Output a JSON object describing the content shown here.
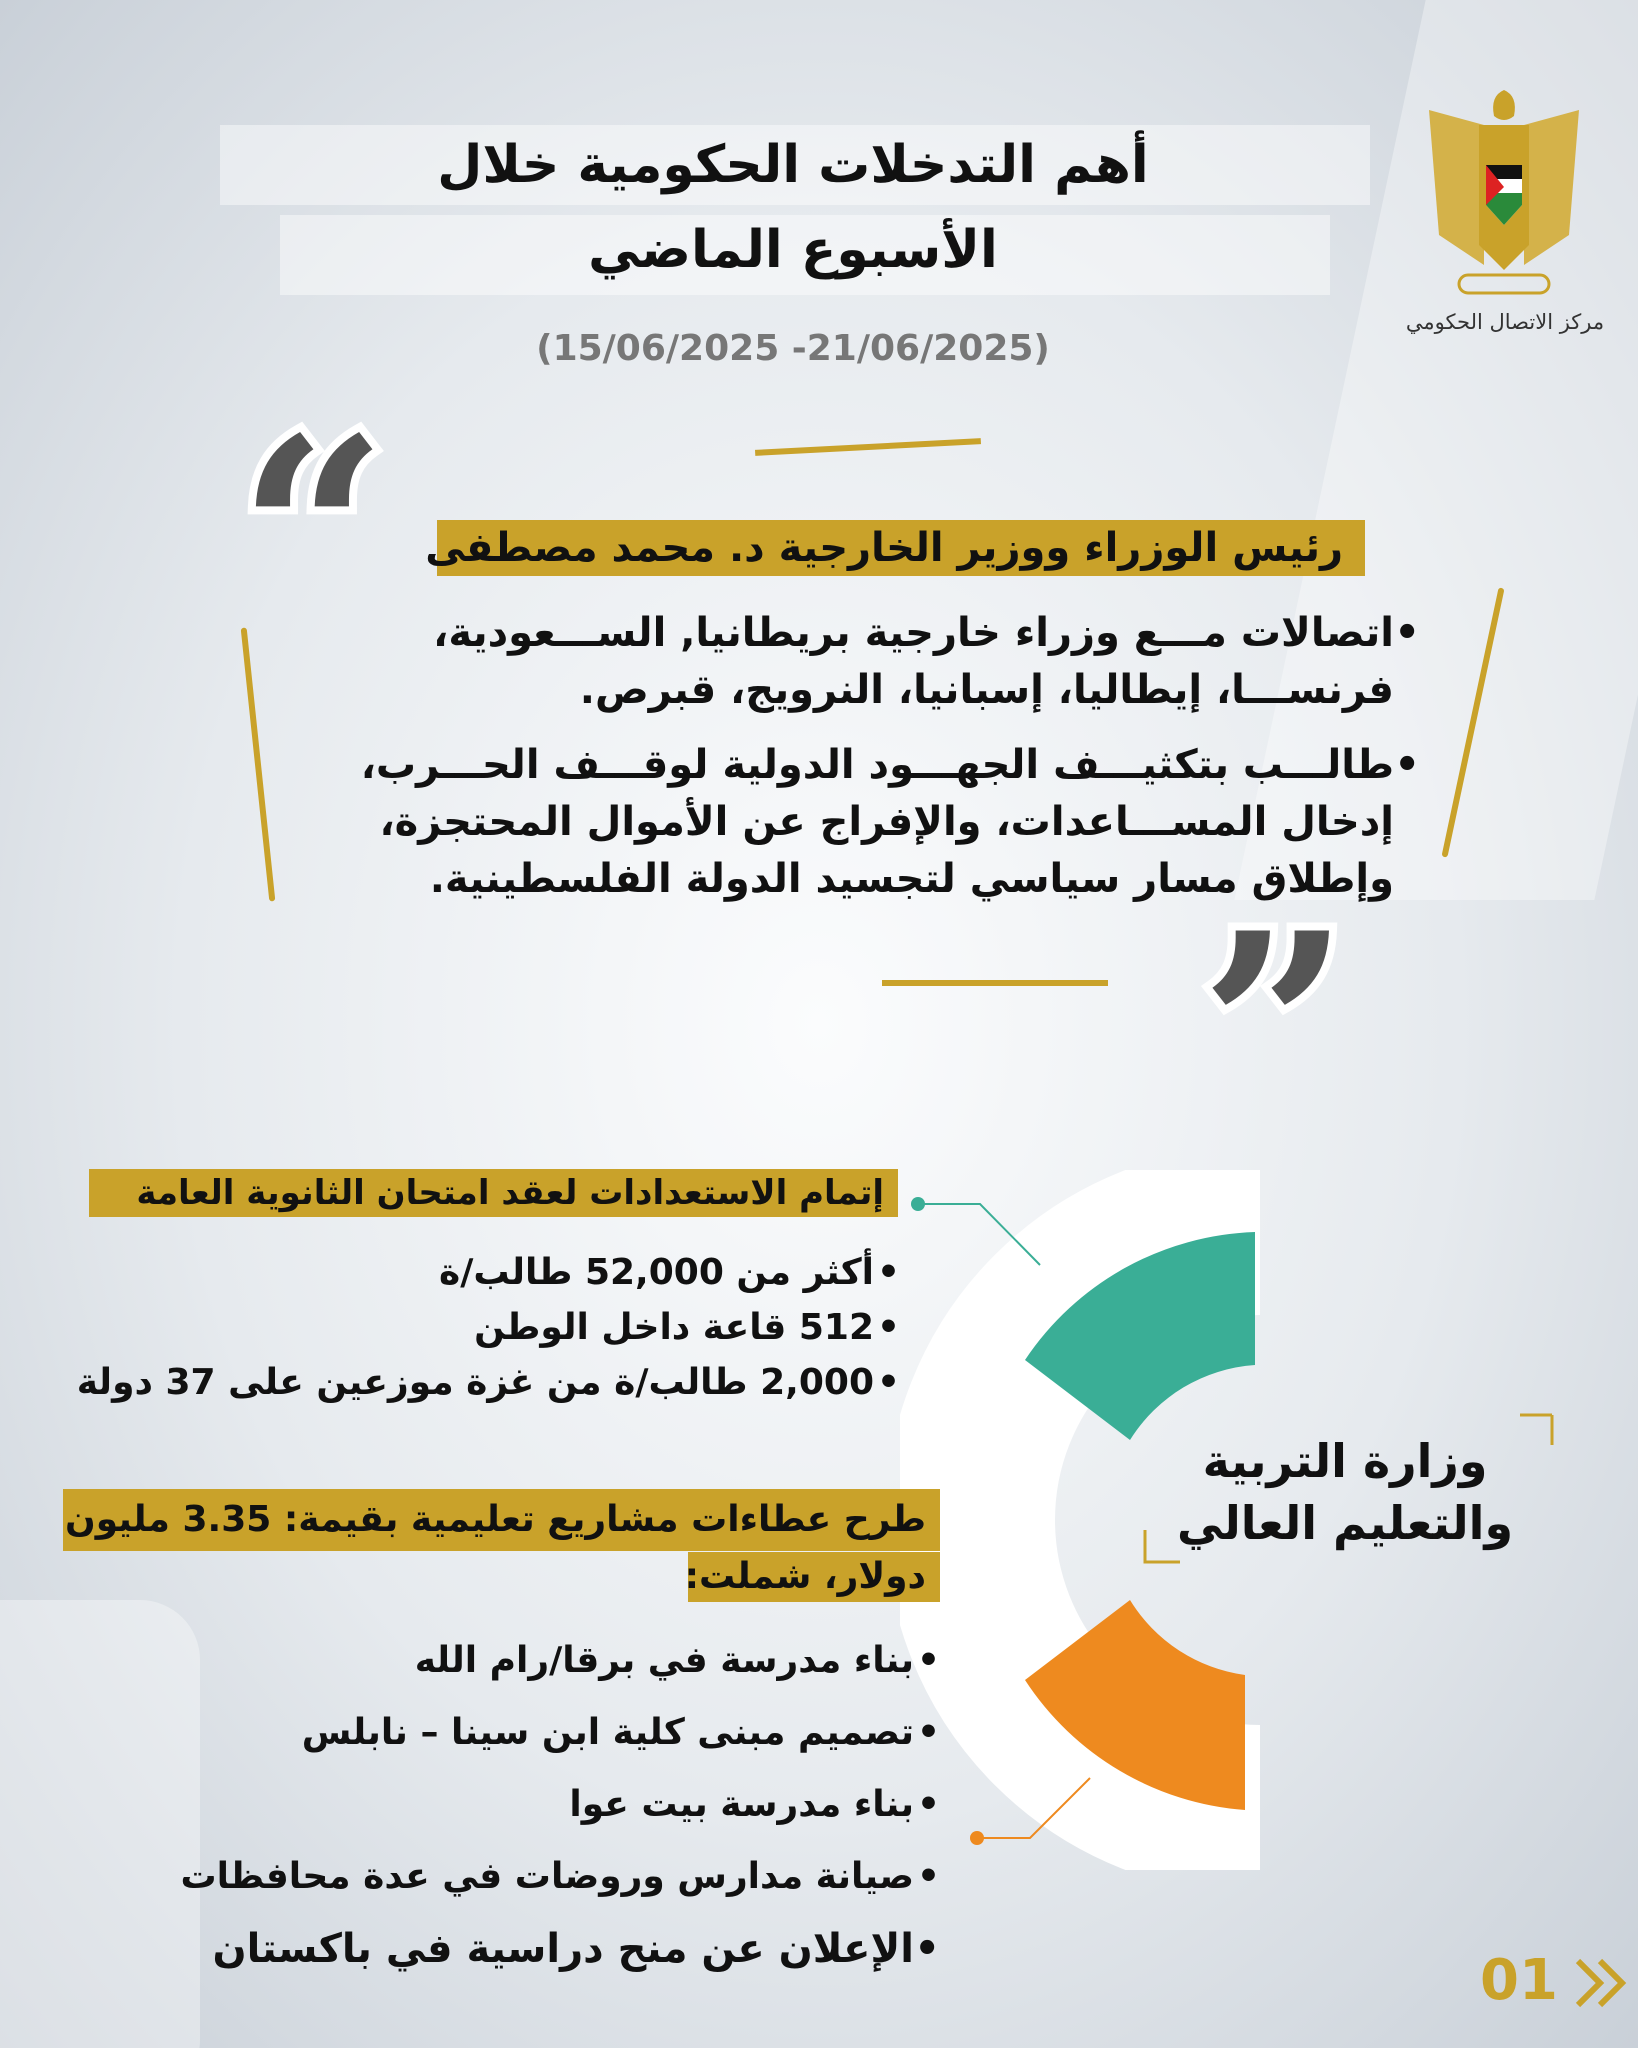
{
  "header": {
    "title_line1": "أهم التدخلات الحكومية  خلال",
    "title_line2": "الأسبوع الماضي",
    "date_range": "(15/06/2025 -21/06/2025)"
  },
  "logo": {
    "caption": "مركز الاتصال الحكومي",
    "emblem_text": "فلسطين"
  },
  "quote_section": {
    "speaker": "رئيس الوزراء ووزير الخارجية د. محمد مصطفى",
    "bullets": [
      "اتصالات مـــع وزراء خارجية بريطانيا, الســـعودية، فرنســـا، إيطاليا، إسبانيا، النرويج، قبرص.",
      "طالـــب بتكثيـــف الجهـــود الدولية لوقـــف الحـــرب، إدخال المســـاعدات، والإفراج عن الأموال المحتجزة، وإطلاق مسار سياسي لتجسيد الدولة الفلسطينية."
    ],
    "open_quote": "“",
    "close_quote": "”"
  },
  "ministry": {
    "name_line1": "وزارة التربية",
    "name_line2": "والتعليم العالي",
    "exam": {
      "heading": "إتمام الاستعدادات لعقد امتحان الثانوية العامة",
      "bullets": [
        "أكثر من 52,000 طالب/ة",
        "512 قاعة داخل الوطن",
        "2,000 طالب/ة من غزة موزعين على 37 دولة"
      ]
    },
    "projects": {
      "heading_line1": "طرح عطاءات مشاريع تعليمية بقيمة: 3.35 مليون",
      "heading_line2": "دولار، شملت:",
      "bullets": [
        "بناء مدرسة في برقا/رام الله",
        "تصميم مبنى كلية ابن سينا – نابلس",
        "بناء مدرسة بيت عوا",
        "صيانة مدارس وروضات في عدة محافظات",
        "الإعلان عن منح دراسية في باكستان"
      ]
    }
  },
  "colors": {
    "gold": "#c9a22a",
    "teal": "#3aae96",
    "orange": "#ee8a1f"
  },
  "footer": {
    "page_number": "01",
    "next_icon": "double-chevron-icon"
  }
}
